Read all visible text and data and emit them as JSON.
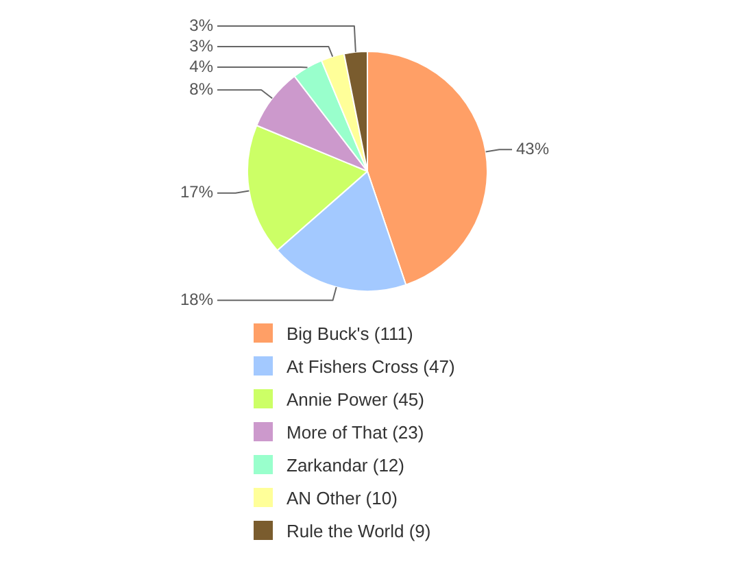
{
  "chart_data": {
    "type": "pie",
    "categories": [
      "Big Buck's (111)",
      "At Fishers Cross (47)",
      "Annie Power (45)",
      "More of That (23)",
      "Zarkandar (12)",
      "AN Other (10)",
      "Rule the World (9)"
    ],
    "values": [
      43,
      18,
      17,
      8,
      4,
      3,
      3
    ],
    "colors": [
      "#ff9f66",
      "#a3c9ff",
      "#ccff66",
      "#cc99cc",
      "#99ffcc",
      "#ffff99",
      "#7a5c2e"
    ],
    "value_labels": [
      "43%",
      "18%",
      "17%",
      "8%",
      "4%",
      "3%",
      "3%"
    ],
    "legend": "bottom"
  }
}
